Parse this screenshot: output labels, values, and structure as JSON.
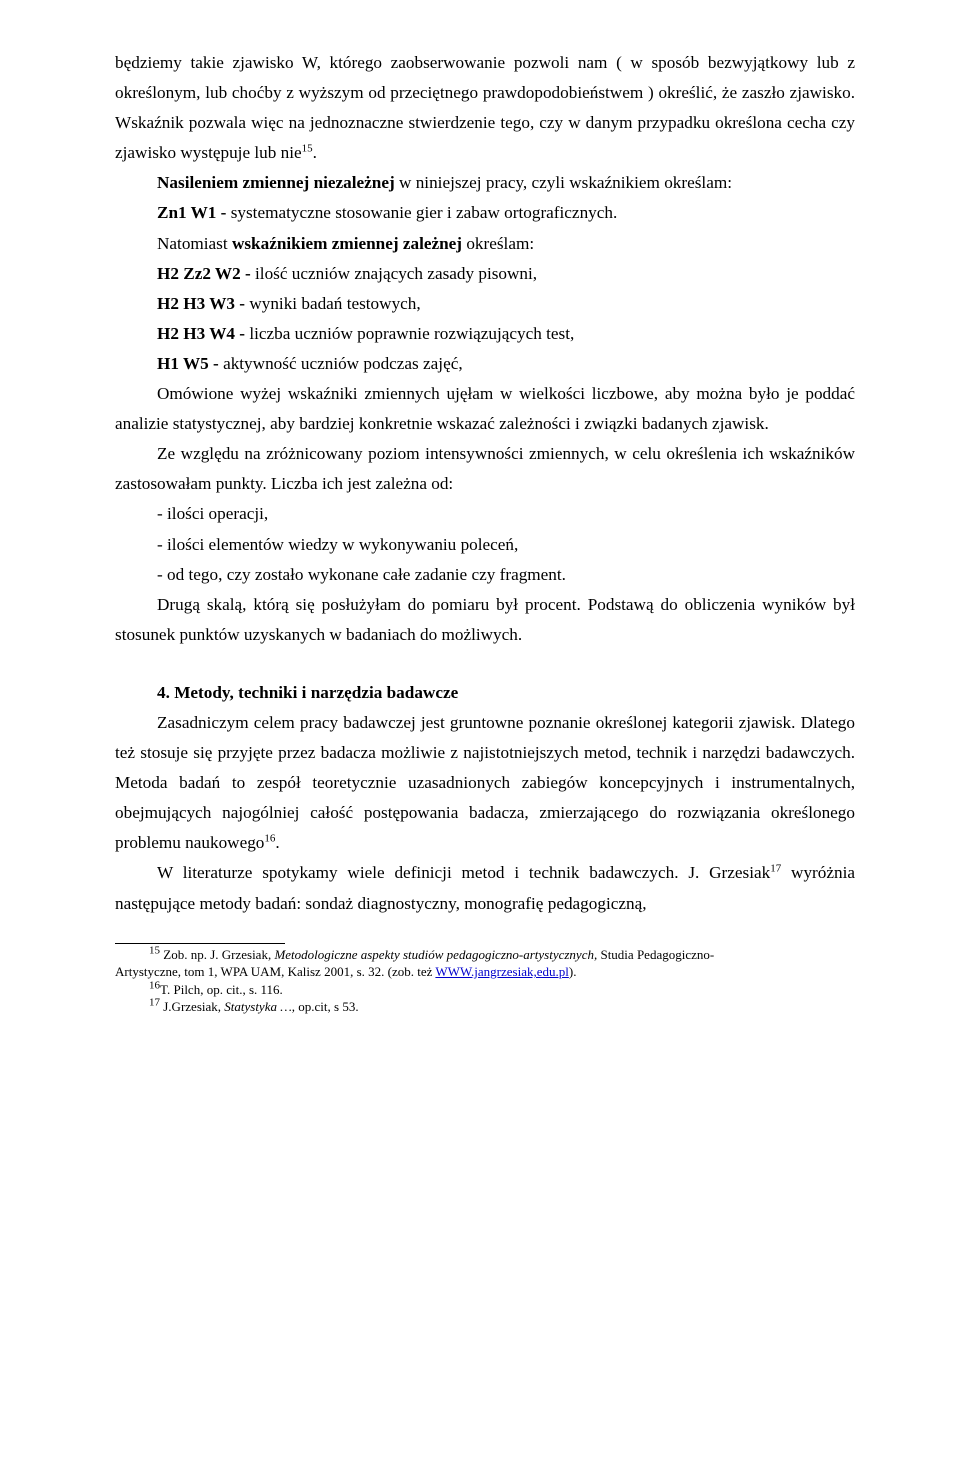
{
  "para1": "będziemy takie zjawisko W, którego zaobserwowanie pozwoli nam ( w sposób bezwyjątkowy lub z określonym, lub choćby z wyższym od przeciętnego prawdopodobieństwem ) określić, że zaszło zjawisko. Wskaźnik pozwala więc na jednoznaczne stwierdzenie tego, czy w danym przypadku określona cecha czy zjawisko występuje lub nie",
  "sup15": "15",
  "period": ".",
  "para2a": "Nasileniem zmiennej niezależnej",
  "para2b": " w niniejszej pracy, czyli wskaźnikiem określam:",
  "zn1_label": "Zn1 W1 - ",
  "zn1_text": " systematyczne stosowanie gier i zabaw ortograficznych.",
  "para3a": "Natomiast ",
  "para3b": "wskaźnikiem zmiennej zależnej",
  "para3c": " określam:",
  "h2zz2_label": "H2 Zz2 W2 - ",
  "h2zz2_text": " ilość uczniów znających zasady pisowni,",
  "h2h3w3_label": "H2 H3 W3 - ",
  "h2h3w3_text": " wyniki badań testowych,",
  "h2h3w4_label": "H2 H3 W4 - ",
  "h2h3w4_text": " liczba uczniów poprawnie rozwiązujących test,",
  "h1w5_label": "H1 W5 - ",
  "h1w5_text": " aktywność uczniów podczas zajęć,",
  "para4": "Omówione wyżej wskaźniki zmiennych ujęłam w wielkości liczbowe, aby można było je poddać analizie statystycznej, aby bardziej konkretnie wskazać zależności i związki badanych zjawisk.",
  "para5": "Ze względu na zróżnicowany poziom intensywności zmiennych, w celu określenia ich wskaźników zastosowałam punkty. Liczba ich jest zależna od:",
  "bullet1": "- ilości operacji,",
  "bullet2": "- ilości elementów wiedzy w wykonywaniu poleceń,",
  "bullet3": "- od tego, czy zostało wykonane całe zadanie czy fragment.",
  "para6": "Drugą skalą, którą się posłużyłam do pomiaru był procent. Podstawą do obliczenia wyników był stosunek punktów uzyskanych w badaniach do możliwych.",
  "heading4": "4. Metody, techniki i narzędzia badawcze",
  "para7a": "Zasadniczym celem pracy badawczej jest gruntowne poznanie określonej kategorii zjawisk. Dlatego też stosuje się przyjęte przez badacza możliwie z najistotniejszych metod, technik i narzędzi badawczych. Metoda badań to zespół teoretycznie uzasadnionych zabiegów koncepcyjnych i instrumentalnych, obejmujących najogólniej całość postępowania badacza, zmierzającego do rozwiązania określonego problemu naukowego",
  "sup16": "16",
  "para8a": "W literaturze spotykamy wiele definicji metod i technik badawczych. J. Grzesiak",
  "sup17": "17",
  "para8b": " wyróżnia następujące metody badań: sondaż diagnostyczny, monografię pedagogiczną,",
  "fn15_sup": "15",
  "fn15a": " Zob. np. J. Grzesiak, ",
  "fn15b": "Metodologiczne aspekty studiów pedagogiczno-artystycznych,",
  "fn15c": " Studia Pedagogiczno-",
  "fn15d": "Artystyczne, tom 1, WPA UAM, Kalisz 2001, s. 32. (zob. też ",
  "fn15_link": "WWW.jangrzesiak,edu.pl",
  "fn15e": ").",
  "fn16_sup": "16",
  "fn16": "T. Pilch, op. cit., s. 116.",
  "fn17_sup": "17",
  "fn17a": " J.Grzesiak, ",
  "fn17b": "Statystyka …,",
  "fn17c": " op.cit, s 53."
}
